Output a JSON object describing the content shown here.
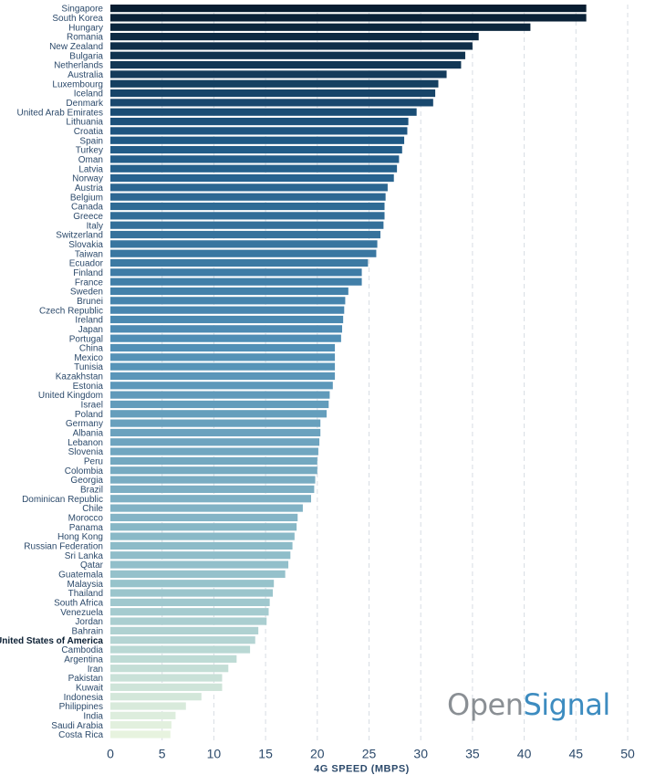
{
  "chart_data": {
    "type": "bar",
    "orientation": "horizontal",
    "xlabel": "4G SPEED (MBPS)",
    "xlim": [
      0,
      50
    ],
    "xticks": [
      0,
      5,
      10,
      15,
      20,
      25,
      30,
      35,
      40,
      45,
      50
    ],
    "grid": true,
    "highlighted_category": "United States of America",
    "colors": {
      "darkest": "#081d31",
      "dark": "#1f5985",
      "mid": "#4e8db5",
      "light": "#99c4cc",
      "lightest": "#e7f3df"
    },
    "categories": [
      "Singapore",
      "South Korea",
      "Hungary",
      "Romania",
      "New Zealand",
      "Bulgaria",
      "Netherlands",
      "Australia",
      "Luxembourg",
      "Iceland",
      "Denmark",
      "United Arab Emirates",
      "Lithuania",
      "Croatia",
      "Spain",
      "Turkey",
      "Oman",
      "Latvia",
      "Norway",
      "Austria",
      "Belgium",
      "Canada",
      "Greece",
      "Italy",
      "Switzerland",
      "Slovakia",
      "Taiwan",
      "Ecuador",
      "Finland",
      "France",
      "Sweden",
      "Brunei",
      "Czech Republic",
      "Ireland",
      "Japan",
      "Portugal",
      "China",
      "Mexico",
      "Tunisia",
      "Kazakhstan",
      "Estonia",
      "United Kingdom",
      "Israel",
      "Poland",
      "Germany",
      "Albania",
      "Lebanon",
      "Slovenia",
      "Peru",
      "Colombia",
      "Georgia",
      "Brazil",
      "Dominican Republic",
      "Chile",
      "Morocco",
      "Panama",
      "Hong Kong",
      "Russian Federation",
      "Sri Lanka",
      "Qatar",
      "Guatemala",
      "Malaysia",
      "Thailand",
      "South Africa",
      "Venezuela",
      "Jordan",
      "Bahrain",
      "United States of America",
      "Cambodia",
      "Argentina",
      "Iran",
      "Pakistan",
      "Kuwait",
      "Indonesia",
      "Philippines",
      "India",
      "Saudi Arabia",
      "Costa Rica"
    ],
    "values": [
      46.0,
      46.0,
      40.6,
      35.6,
      35.0,
      34.3,
      33.9,
      32.5,
      31.7,
      31.4,
      31.2,
      29.6,
      28.8,
      28.7,
      28.4,
      28.2,
      27.9,
      27.7,
      27.4,
      26.8,
      26.6,
      26.5,
      26.5,
      26.4,
      26.1,
      25.8,
      25.7,
      24.9,
      24.3,
      24.3,
      23.0,
      22.7,
      22.6,
      22.5,
      22.4,
      22.3,
      21.7,
      21.7,
      21.7,
      21.7,
      21.5,
      21.2,
      21.1,
      20.9,
      20.3,
      20.3,
      20.2,
      20.1,
      20.0,
      20.0,
      19.8,
      19.7,
      19.4,
      18.6,
      18.1,
      18.0,
      17.8,
      17.6,
      17.4,
      17.2,
      16.9,
      15.8,
      15.7,
      15.4,
      15.3,
      15.1,
      14.3,
      14.0,
      13.5,
      12.2,
      11.4,
      10.8,
      10.8,
      8.8,
      7.3,
      6.3,
      5.9,
      5.8
    ]
  },
  "brand": {
    "part1": "Open",
    "part2": "Signal"
  }
}
